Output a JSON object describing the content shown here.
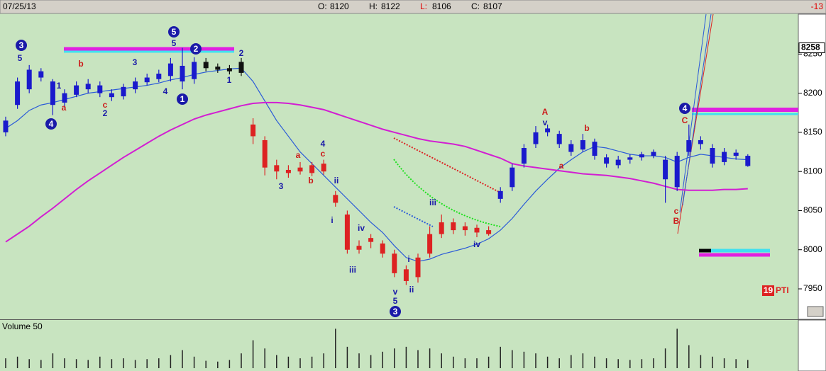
{
  "header": {
    "date": "07/25/13",
    "fields": [
      {
        "label": "O:",
        "value": 8120,
        "label_color": "#000000"
      },
      {
        "label": "H:",
        "value": 8122,
        "label_color": "#000000"
      },
      {
        "label": "L:",
        "value": 8106,
        "label_color": "#e00000"
      },
      {
        "label": "C:",
        "value": 8107,
        "label_color": "#000000"
      }
    ],
    "change": -13,
    "change_color": "#e00000"
  },
  "chart_data": {
    "type": "candlestick",
    "open": [
      8150,
      8185,
      8205,
      8228,
      8215,
      8188,
      8198,
      8205,
      8210,
      8200,
      8196,
      8205,
      8214,
      8218,
      8222,
      8235,
      8218,
      8240,
      8234,
      8232,
      8226,
      8160,
      8140,
      8108,
      8098,
      8100,
      8108,
      8110,
      8070,
      8045,
      8000,
      8015,
      8008,
      7995,
      7975,
      7965,
      7995,
      8020,
      8035,
      8030,
      8028,
      8020,
      8065,
      8080,
      8110,
      8135,
      8155,
      8148,
      8135,
      8128,
      8138,
      8118,
      8108,
      8115,
      8118,
      8120,
      8115,
      8080,
      8125,
      8140,
      8130,
      8112,
      8124,
      8120
    ],
    "high": [
      8170,
      8220,
      8236,
      8232,
      8218,
      8205,
      8215,
      8218,
      8215,
      8205,
      8212,
      8220,
      8225,
      8230,
      8245,
      8258,
      8246,
      8245,
      8238,
      8236,
      8245,
      8168,
      8145,
      8115,
      8108,
      8112,
      8112,
      8115,
      8075,
      8050,
      8012,
      8020,
      8012,
      8000,
      7980,
      7995,
      8030,
      8045,
      8040,
      8035,
      8032,
      8030,
      8080,
      8110,
      8135,
      8158,
      8160,
      8152,
      8140,
      8148,
      8142,
      8122,
      8120,
      8122,
      8125,
      8128,
      8120,
      8125,
      8160,
      8145,
      8135,
      8130,
      8128,
      8122
    ],
    "low": [
      8145,
      8180,
      8200,
      8215,
      8172,
      8182,
      8195,
      8200,
      8195,
      8190,
      8192,
      8200,
      8210,
      8214,
      8215,
      8205,
      8212,
      8228,
      8226,
      8224,
      8222,
      8135,
      8095,
      8090,
      8092,
      8096,
      8094,
      8096,
      8055,
      7995,
      7995,
      8002,
      7990,
      7965,
      7955,
      7958,
      7990,
      8015,
      8020,
      8018,
      8016,
      8018,
      8060,
      8075,
      8105,
      8130,
      8145,
      8130,
      8120,
      8125,
      8115,
      8105,
      8104,
      8110,
      8114,
      8117,
      8060,
      8075,
      8120,
      8128,
      8105,
      8108,
      8115,
      8106
    ],
    "close": [
      8165,
      8215,
      8230,
      8220,
      8185,
      8200,
      8210,
      8212,
      8200,
      8195,
      8208,
      8215,
      8220,
      8225,
      8238,
      8215,
      8240,
      8232,
      8230,
      8228,
      8240,
      8145,
      8105,
      8100,
      8102,
      8105,
      8098,
      8100,
      8060,
      8000,
      8005,
      8010,
      7995,
      7970,
      7960,
      7990,
      8020,
      8035,
      8025,
      8025,
      8022,
      8025,
      8075,
      8105,
      8130,
      8150,
      8150,
      8135,
      8125,
      8140,
      8120,
      8110,
      8115,
      8118,
      8122,
      8125,
      8090,
      8120,
      8140,
      8135,
      8110,
      8125,
      8120,
      8107
    ],
    "candle_colors": [
      "#1a1acc",
      "#1a1acc",
      "#1a1acc",
      "#1a1acc",
      "#1a1acc",
      "#1a1acc",
      "#1a1acc",
      "#1a1acc",
      "#1a1acc",
      "#1a1acc",
      "#1a1acc",
      "#1a1acc",
      "#1a1acc",
      "#1a1acc",
      "#1a1acc",
      "#1a1acc",
      "#1a1acc",
      "#111111",
      "#111111",
      "#111111",
      "#111111",
      "#dd2222",
      "#dd2222",
      "#dd2222",
      "#dd2222",
      "#dd2222",
      "#dd2222",
      "#dd2222",
      "#dd2222",
      "#dd2222",
      "#dd2222",
      "#dd2222",
      "#dd2222",
      "#dd2222",
      "#dd2222",
      "#dd2222",
      "#dd2222",
      "#dd2222",
      "#dd2222",
      "#dd2222",
      "#dd2222",
      "#dd2222",
      "#1a1acc",
      "#1a1acc",
      "#1a1acc",
      "#1a1acc",
      "#1a1acc",
      "#1a1acc",
      "#1a1acc",
      "#1a1acc",
      "#1a1acc",
      "#1a1acc",
      "#1a1acc",
      "#1a1acc",
      "#1a1acc",
      "#1a1acc",
      "#1a1acc",
      "#1a1acc",
      "#1a1acc",
      "#1a1acc",
      "#1a1acc",
      "#1a1acc",
      "#1a1acc",
      "#1a1acc"
    ],
    "ylim": [
      7912,
      8301
    ],
    "yticks": [
      7950,
      8000,
      8050,
      8100,
      8150,
      8200,
      8250
    ],
    "grid": false,
    "moving_averages": [
      {
        "color": "#2a5ad8",
        "values": [
          8155,
          8165,
          8178,
          8185,
          8188,
          8192,
          8196,
          8200,
          8202,
          8204,
          8206,
          8208,
          8210,
          8213,
          8217,
          8220,
          8224,
          8227,
          8229,
          8231,
          8232,
          8215,
          8190,
          8165,
          8145,
          8125,
          8110,
          8095,
          8080,
          8065,
          8050,
          8035,
          8022,
          8005,
          7990,
          7985,
          7988,
          7994,
          7998,
          8002,
          8007,
          8014,
          8025,
          8040,
          8058,
          8075,
          8090,
          8104,
          8115,
          8125,
          8132,
          8130,
          8126,
          8122,
          8120,
          8120,
          8118,
          8112,
          8118,
          8122,
          8120,
          8118,
          8116,
          8115
        ]
      },
      {
        "color": "#d21ed2",
        "values": [
          8010,
          8020,
          8030,
          8042,
          8053,
          8065,
          8077,
          8088,
          8098,
          8108,
          8118,
          8127,
          8136,
          8145,
          8153,
          8160,
          8167,
          8172,
          8176,
          8180,
          8184,
          8187,
          8188,
          8188,
          8187,
          8185,
          8182,
          8179,
          8174,
          8169,
          8164,
          8159,
          8154,
          8150,
          8146,
          8142,
          8139,
          8137,
          8135,
          8132,
          8127,
          8122,
          8117,
          8110,
          8107,
          8105,
          8103,
          8101,
          8099,
          8097,
          8096,
          8095,
          8093,
          8091,
          8088,
          8085,
          8081,
          8077,
          8076,
          8076,
          8076,
          8077,
          8077,
          8078
        ]
      }
    ],
    "price_flag": 8258,
    "annotations": [
      {
        "text": "3",
        "color": "#1a1aa8"
      },
      {
        "text": "5",
        "color": "#1a1aa8"
      },
      {
        "text": "4",
        "color": "#1a1aa8"
      },
      {
        "text": "a",
        "color": "#cc1a1a"
      },
      {
        "text": "1",
        "color": "#1a1aa8"
      },
      {
        "text": "b",
        "color": "#cc1a1a"
      },
      {
        "text": "c",
        "color": "#cc1a1a"
      },
      {
        "text": "2",
        "color": "#1a1aa8"
      },
      {
        "text": "3",
        "color": "#1a1aa8"
      },
      {
        "text": "4",
        "color": "#1a1aa8"
      },
      {
        "text": "5",
        "color": "#1a1aa8"
      },
      {
        "text": "5",
        "color": "#1a1aa8"
      },
      {
        "text": "2",
        "color": "#1a1aa8"
      },
      {
        "text": "1",
        "color": "#1a1aa8"
      },
      {
        "text": "2",
        "color": "#1a1aa8"
      },
      {
        "text": "1",
        "color": "#1a1aa8"
      },
      {
        "text": "4",
        "color": "#1a1aa8"
      },
      {
        "text": "c",
        "color": "#cc1a1a"
      },
      {
        "text": "a",
        "color": "#cc1a1a"
      },
      {
        "text": "3",
        "color": "#1a1aa8"
      },
      {
        "text": "b",
        "color": "#cc1a1a"
      },
      {
        "text": "ii",
        "color": "#1a1aa8"
      },
      {
        "text": "i",
        "color": "#1a1aa8"
      },
      {
        "text": "iv",
        "color": "#1a1aa8"
      },
      {
        "text": "iii",
        "color": "#1a1aa8"
      },
      {
        "text": "v",
        "color": "#1a1aa8"
      },
      {
        "text": "5",
        "color": "#1a1aa8"
      },
      {
        "text": "3",
        "color": "#1a1aa8"
      },
      {
        "text": "i",
        "color": "#1a1aa8"
      },
      {
        "text": "ii",
        "color": "#1a1aa8"
      },
      {
        "text": "iii",
        "color": "#1a1aa8"
      },
      {
        "text": "iv",
        "color": "#1a1aa8"
      },
      {
        "text": "A",
        "color": "#cc1a1a"
      },
      {
        "text": "v",
        "color": "#1a1aa8"
      },
      {
        "text": "b",
        "color": "#cc1a1a"
      },
      {
        "text": "a",
        "color": "#cc1a1a"
      },
      {
        "text": "4",
        "color": "#1a1aa8"
      },
      {
        "text": "C",
        "color": "#cc1a1a"
      },
      {
        "text": "c",
        "color": "#cc1a1a"
      },
      {
        "text": "B",
        "color": "#cc1a1a"
      }
    ],
    "badge": {
      "number": 19,
      "text": "PTI"
    },
    "volume": {
      "title": "Volume 50",
      "color": "#222222",
      "ylim": [
        0,
        250
      ],
      "values": [
        60,
        70,
        55,
        50,
        90,
        60,
        55,
        50,
        70,
        55,
        60,
        50,
        55,
        60,
        80,
        110,
        70,
        45,
        40,
        50,
        90,
        170,
        120,
        80,
        70,
        60,
        70,
        90,
        240,
        130,
        90,
        80,
        100,
        120,
        130,
        110,
        120,
        90,
        70,
        60,
        60,
        70,
        130,
        110,
        100,
        90,
        70,
        60,
        80,
        90,
        70,
        60,
        55,
        50,
        55,
        60,
        120,
        240,
        140,
        80,
        70,
        60,
        55,
        50
      ]
    }
  }
}
